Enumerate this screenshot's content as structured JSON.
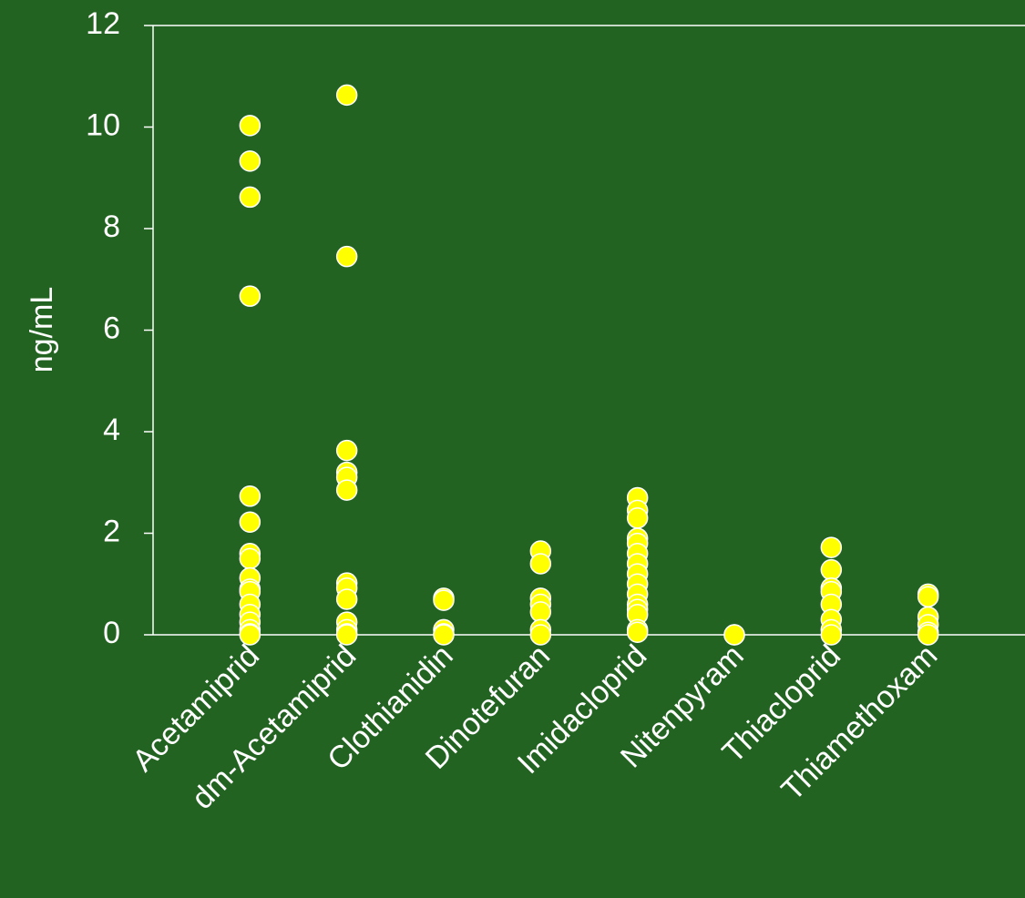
{
  "chart_data": {
    "type": "strip",
    "ylabel": "ng/mL",
    "categories": [
      "Acetamiprid",
      "dm-Acetamiprid",
      "Clothianidin",
      "Dinotefuran",
      "Imidacloprid",
      "Nitenpyram",
      "Thiacloprid",
      "Thiamethoxam"
    ],
    "values": [
      [
        10.03,
        9.33,
        8.62,
        6.67,
        2.73,
        2.22,
        1.6,
        1.5,
        1.12,
        0.9,
        0.85,
        0.6,
        0.4,
        0.25,
        0.1,
        0.02,
        0
      ],
      [
        10.63,
        7.45,
        3.63,
        3.2,
        3.1,
        2.85,
        1.02,
        0.92,
        0.7,
        0.25,
        0.1,
        0.02,
        0
      ],
      [
        0.72,
        0.68,
        0.1,
        0.02,
        0
      ],
      [
        1.65,
        1.4,
        0.72,
        0.6,
        0.45,
        0.1,
        0
      ],
      [
        2.7,
        2.45,
        2.3,
        1.9,
        1.8,
        1.6,
        1.4,
        1.2,
        1.0,
        0.8,
        0.6,
        0.5,
        0.4,
        0.1,
        0.05
      ],
      [
        0,
        0
      ],
      [
        1.72,
        1.28,
        0.92,
        0.85,
        0.6,
        0.3,
        0.1,
        0
      ],
      [
        0.8,
        0.75,
        0.35,
        0.2,
        0.05,
        0
      ]
    ],
    "color": "#ffff00",
    "ylim": [
      0,
      12
    ],
    "yticks": [
      0,
      2,
      4,
      6,
      8,
      10,
      12
    ]
  }
}
